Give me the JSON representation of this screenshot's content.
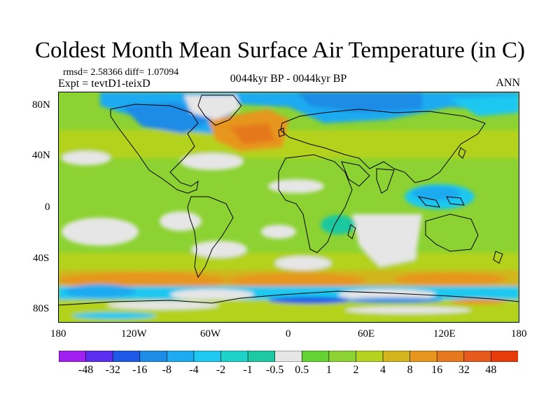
{
  "title": "Coldest Month Mean Surface Air Temperature (in C)",
  "stats": "rmsd= 2.58366 diff= 1.07094",
  "expt": "Expt = tevtD1-teixD",
  "center_label": "0044kyr BP - 0044kyr BP",
  "season": "ANN",
  "map": {
    "lat_ticks": [
      "80N",
      "40N",
      "0",
      "40S",
      "80S"
    ],
    "lon_ticks": [
      "180",
      "120W",
      "60W",
      "0",
      "60E",
      "120E",
      "180"
    ],
    "projection": "cylindrical-equidistant",
    "lon_range": [
      -180,
      180
    ],
    "lat_range": [
      -90,
      90
    ]
  },
  "colorbar": {
    "labels": [
      "-48",
      "-32",
      "-16",
      "-8",
      "-4",
      "-2",
      "-1",
      "-0.5",
      "0.5",
      "1",
      "2",
      "4",
      "8",
      "16",
      "32",
      "48"
    ],
    "colors": [
      "#a020f0",
      "#5a2df0",
      "#1e5ae6",
      "#1e8ce6",
      "#1eaaf0",
      "#1ec8f0",
      "#1ed2c8",
      "#1ec8a0",
      "#e6e6e6",
      "#64d232",
      "#8cd232",
      "#b4d21e",
      "#d2b41e",
      "#e6961e",
      "#e6781e",
      "#e65a1e",
      "#e63c0a"
    ]
  },
  "colors": {
    "ocean_base": "#8cd232",
    "land_base": "#b4d21e",
    "coast": "#000000"
  }
}
